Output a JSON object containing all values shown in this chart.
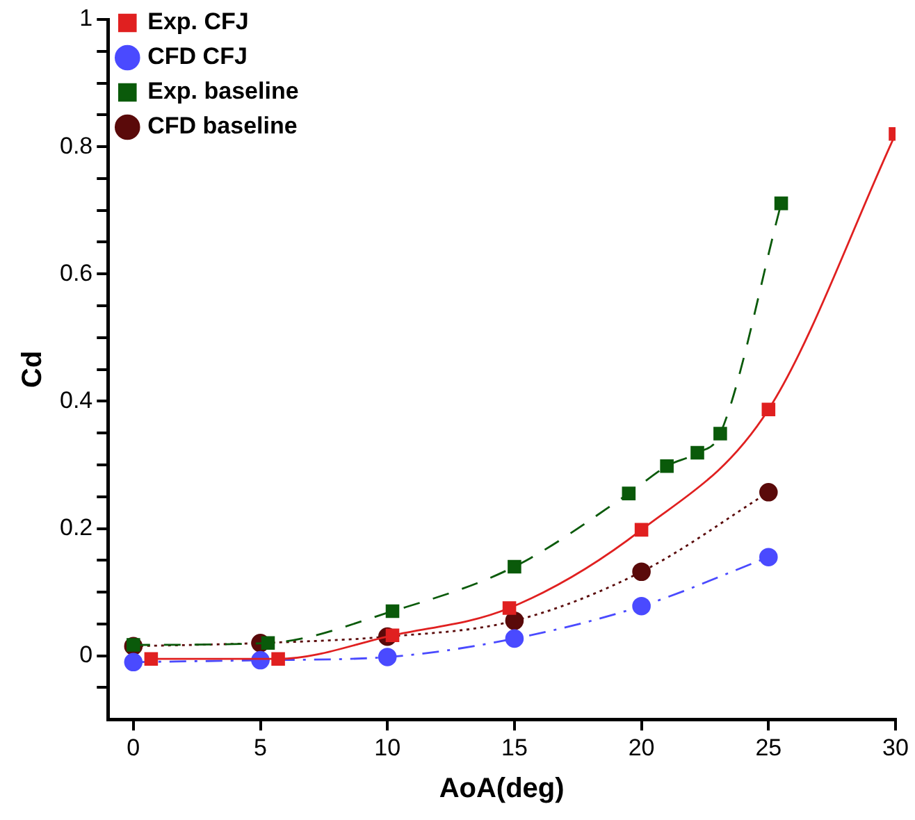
{
  "chart_data": {
    "type": "line",
    "xlabel": "AoA(deg)",
    "ylabel": "Cd",
    "xlim": [
      -1,
      30
    ],
    "xticks": [
      0,
      5,
      10,
      15,
      20,
      25,
      30
    ],
    "ylim": [
      -0.1,
      1
    ],
    "yticks": [
      {
        "value": -0.05,
        "label": null
      },
      0,
      {
        "value": 0.05,
        "label": null
      },
      {
        "value": 0.1,
        "label": null
      },
      {
        "value": 0.15,
        "label": null
      },
      0.2,
      {
        "value": 0.25,
        "label": null
      },
      {
        "value": 0.3,
        "label": null
      },
      {
        "value": 0.35,
        "label": null
      },
      0.4,
      {
        "value": 0.45,
        "label": null
      },
      {
        "value": 0.5,
        "label": null
      },
      {
        "value": 0.55,
        "label": null
      },
      0.6,
      {
        "value": 0.65,
        "label": null
      },
      {
        "value": 0.7,
        "label": null
      },
      {
        "value": 0.75,
        "label": null
      },
      0.8,
      {
        "value": 0.85,
        "label": null
      },
      {
        "value": 0.9,
        "label": null
      },
      {
        "value": 0.95,
        "label": null
      },
      1
    ],
    "grid": false,
    "legend": "top left",
    "series": [
      {
        "name": "Exp. CFJ",
        "color": "#e02020",
        "marker": "square",
        "line_style": "solid",
        "x": [
          0.7,
          5.7,
          10.2,
          14.8,
          20,
          25,
          30
        ],
        "values": [
          -0.005,
          -0.005,
          0.032,
          0.075,
          0.198,
          0.387,
          0.82
        ]
      },
      {
        "name": "CFD CFJ",
        "color": "#4a4aff",
        "marker": "circle",
        "line_style": "dashdot",
        "x": [
          0,
          5,
          10,
          15,
          20,
          25
        ],
        "values": [
          -0.01,
          -0.007,
          -0.002,
          0.027,
          0.078,
          0.155
        ]
      },
      {
        "name": "Exp. baseline",
        "color": "#0a5a0a",
        "marker": "square",
        "line_style": "dashed",
        "x": [
          0,
          5.3,
          10.2,
          15,
          19.5,
          21,
          22.2,
          23.1,
          25.5
        ],
        "values": [
          0.017,
          0.02,
          0.07,
          0.14,
          0.255,
          0.298,
          0.319,
          0.349,
          0.711
        ]
      },
      {
        "name": "CFD baseline",
        "color": "#5a0a0a",
        "marker": "circle",
        "line_style": "dotted",
        "x": [
          0,
          5,
          10,
          15,
          20,
          25
        ],
        "values": [
          0.015,
          0.02,
          0.03,
          0.055,
          0.132,
          0.257
        ]
      }
    ]
  }
}
